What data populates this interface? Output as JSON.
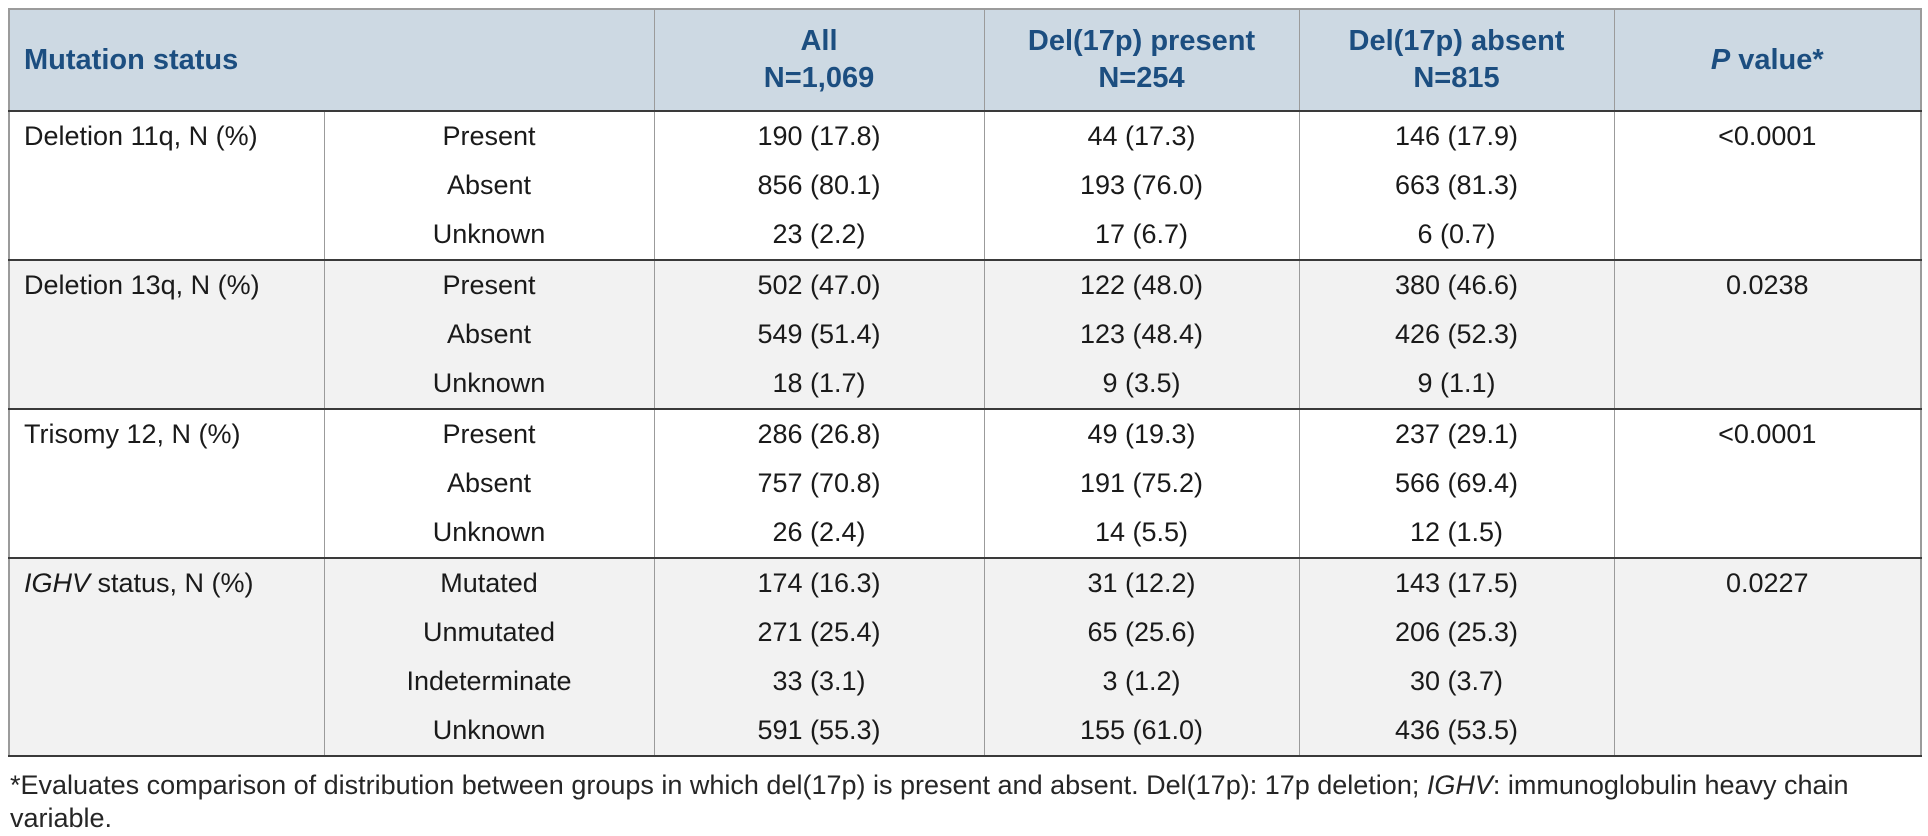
{
  "theme": {
    "header_bg": "#cdd9e3",
    "header_text": "#1c4e80",
    "body_text": "#1a1a1a",
    "stripe_bg": "#f2f2f2",
    "border_dark": "#3a3a3a",
    "border_light": "#9b9b9b",
    "page_bg": "#ffffff"
  },
  "table": {
    "header": {
      "mutation_status": "Mutation status",
      "all_line1": "All",
      "all_line2": "N=1,069",
      "present_line1": "Del(17p) present",
      "present_line2": "N=254",
      "absent_line1": "Del(17p) absent",
      "absent_line2": "N=815",
      "p_italic": "P",
      "p_rest": " value*"
    },
    "groups": [
      {
        "label_it": "",
        "label_rest": "Deletion 11q, N (%)",
        "p_value": "<0.0001",
        "rows": [
          {
            "category": "Present",
            "all": "190 (17.8)",
            "del17p_present": "44 (17.3)",
            "del17p_absent": "146 (17.9)"
          },
          {
            "category": "Absent",
            "all": "856 (80.1)",
            "del17p_present": "193 (76.0)",
            "del17p_absent": "663 (81.3)"
          },
          {
            "category": "Unknown",
            "all": "23 (2.2)",
            "del17p_present": "17 (6.7)",
            "del17p_absent": "6 (0.7)"
          }
        ]
      },
      {
        "label_it": "",
        "label_rest": "Deletion 13q, N (%)",
        "p_value": "0.0238",
        "rows": [
          {
            "category": "Present",
            "all": "502 (47.0)",
            "del17p_present": "122 (48.0)",
            "del17p_absent": "380 (46.6)"
          },
          {
            "category": "Absent",
            "all": "549 (51.4)",
            "del17p_present": "123 (48.4)",
            "del17p_absent": "426 (52.3)"
          },
          {
            "category": "Unknown",
            "all": "18 (1.7)",
            "del17p_present": "9 (3.5)",
            "del17p_absent": "9 (1.1)"
          }
        ]
      },
      {
        "label_it": "",
        "label_rest": "Trisomy 12, N (%)",
        "p_value": "<0.0001",
        "rows": [
          {
            "category": "Present",
            "all": "286 (26.8)",
            "del17p_present": "49 (19.3)",
            "del17p_absent": "237 (29.1)"
          },
          {
            "category": "Absent",
            "all": "757 (70.8)",
            "del17p_present": "191 (75.2)",
            "del17p_absent": "566 (69.4)"
          },
          {
            "category": "Unknown",
            "all": "26 (2.4)",
            "del17p_present": "14 (5.5)",
            "del17p_absent": "12 (1.5)"
          }
        ]
      },
      {
        "label_it": "IGHV",
        "label_rest": " status, N (%)",
        "p_value": "0.0227",
        "rows": [
          {
            "category": "Mutated",
            "all": "174 (16.3)",
            "del17p_present": "31 (12.2)",
            "del17p_absent": "143 (17.5)"
          },
          {
            "category": "Unmutated",
            "all": "271 (25.4)",
            "del17p_present": "65 (25.6)",
            "del17p_absent": "206 (25.3)"
          },
          {
            "category": "Indeterminate",
            "all": "33 (3.1)",
            "del17p_present": "3 (1.2)",
            "del17p_absent": "30 (3.7)"
          },
          {
            "category": "Unknown",
            "all": "591 (55.3)",
            "del17p_present": "155 (61.0)",
            "del17p_absent": "436 (53.5)"
          }
        ]
      }
    ]
  },
  "footnote": {
    "part1": "*Evaluates comparison of distribution between groups in which del(17p) is present and absent.  Del(17p): 17p deletion; ",
    "italic": "IGHV",
    "part2": ": immunoglobulin heavy chain variable."
  }
}
